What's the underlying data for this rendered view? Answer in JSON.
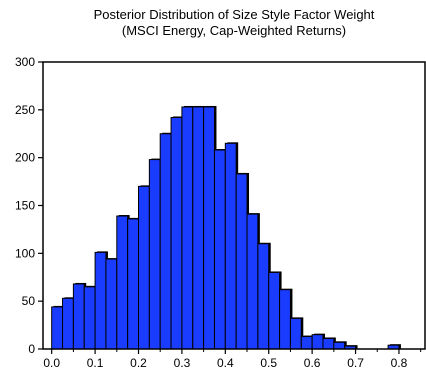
{
  "chart_data": {
    "type": "bar",
    "title": "Posterior Distribution of Size Style Factor Weight",
    "subtitle": "(MSCI Energy, Cap-Weighted Returns)",
    "xlabel": "",
    "ylabel": "",
    "xlim": [
      -0.02,
      0.86
    ],
    "ylim": [
      0,
      300
    ],
    "bin_width": 0.025,
    "x_ticks": [
      "0.0",
      "0.1",
      "0.2",
      "0.3",
      "0.4",
      "0.5",
      "0.6",
      "0.7",
      "0.8"
    ],
    "y_ticks": [
      "0",
      "50",
      "100",
      "150",
      "200",
      "250",
      "300"
    ],
    "bar_color": "#1a3cff",
    "grid": false,
    "bins": [
      {
        "x": 0.0125,
        "value": 44
      },
      {
        "x": 0.0375,
        "value": 53
      },
      {
        "x": 0.0625,
        "value": 68
      },
      {
        "x": 0.0875,
        "value": 65
      },
      {
        "x": 0.1125,
        "value": 101
      },
      {
        "x": 0.1375,
        "value": 94
      },
      {
        "x": 0.1625,
        "value": 139
      },
      {
        "x": 0.1875,
        "value": 136
      },
      {
        "x": 0.2125,
        "value": 170
      },
      {
        "x": 0.2375,
        "value": 198
      },
      {
        "x": 0.2625,
        "value": 225
      },
      {
        "x": 0.2875,
        "value": 242
      },
      {
        "x": 0.3125,
        "value": 253
      },
      {
        "x": 0.3375,
        "value": 253
      },
      {
        "x": 0.3625,
        "value": 253
      },
      {
        "x": 0.3875,
        "value": 208
      },
      {
        "x": 0.4125,
        "value": 215
      },
      {
        "x": 0.4375,
        "value": 183
      },
      {
        "x": 0.4625,
        "value": 141
      },
      {
        "x": 0.4875,
        "value": 110
      },
      {
        "x": 0.5125,
        "value": 80
      },
      {
        "x": 0.5375,
        "value": 62
      },
      {
        "x": 0.5625,
        "value": 32
      },
      {
        "x": 0.5875,
        "value": 13
      },
      {
        "x": 0.6125,
        "value": 15
      },
      {
        "x": 0.6375,
        "value": 11
      },
      {
        "x": 0.6625,
        "value": 7
      },
      {
        "x": 0.6875,
        "value": 3
      },
      {
        "x": 0.7125,
        "value": 0
      },
      {
        "x": 0.7375,
        "value": 0
      },
      {
        "x": 0.7625,
        "value": 0
      },
      {
        "x": 0.7875,
        "value": 4
      }
    ]
  }
}
